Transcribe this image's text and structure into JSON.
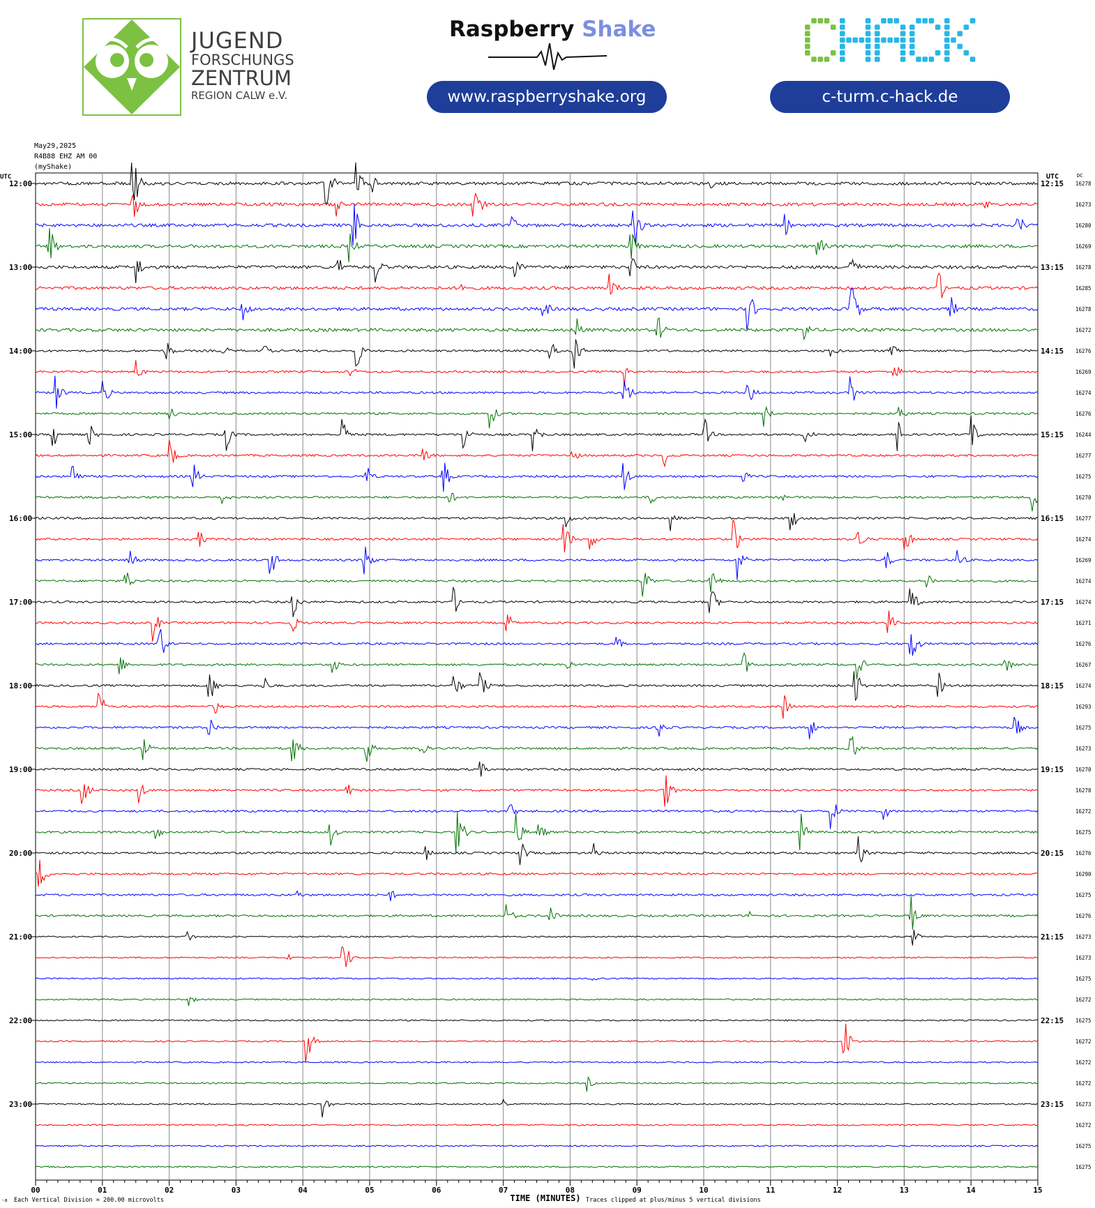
{
  "header": {
    "jfz_lines": [
      "JUGEND",
      "FORSCHUNGS",
      "ZENTRUM",
      "REGION CALW e.V."
    ],
    "rs_name_part1": "Raspberry",
    "rs_name_part2": "Shake",
    "rs_url": "www.raspberryshake.org",
    "chack_name": "CHACK",
    "chack_url": "c-turm.c-hack.de"
  },
  "colors": {
    "jfz_green": "#7cc142",
    "pill_blue": "#1f3e9a",
    "rs_shake_blue": "#7b8fe0",
    "chack_green": "#7cc142",
    "chack_cyan": "#28b7e6",
    "trace_colors": [
      "#000000",
      "#ff0000",
      "#0000ff",
      "#007000"
    ]
  },
  "chart_data": {
    "type": "helicorder",
    "date": "May29,2025",
    "station": "R4B88 EHZ AM 00",
    "network_label": "(myShake)",
    "left_axis_title": "UTC",
    "right_axis_title": "UTC",
    "dc_title": "DC",
    "xlabel": "TIME (MINUTES)",
    "xlim": [
      0,
      15
    ],
    "x_ticks": [
      "00",
      "01",
      "02",
      "03",
      "04",
      "05",
      "06",
      "07",
      "08",
      "09",
      "10",
      "11",
      "12",
      "13",
      "14",
      "15"
    ],
    "scale_note": "Each Vertical Division =  200.00 microvolts",
    "clip_note": "Traces clipped at plus/minus 5 vertical divisions",
    "corner_mark": "-a",
    "left_hour_labels": [
      "12:00",
      "13:00",
      "14:00",
      "15:00",
      "16:00",
      "17:00",
      "18:00",
      "19:00",
      "20:00",
      "21:00",
      "22:00",
      "23:00"
    ],
    "right_hour_labels": [
      "12:15",
      "13:15",
      "14:15",
      "15:15",
      "16:15",
      "17:15",
      "18:15",
      "19:15",
      "20:15",
      "21:15",
      "22:15",
      "23:15"
    ],
    "traces_per_hour": 4,
    "minutes_per_trace": 15,
    "dc_values": [
      "16278",
      "16273",
      "16280",
      "16269",
      "16278",
      "16285",
      "16278",
      "16272",
      "16276",
      "16269",
      "16274",
      "16276",
      "16244",
      "16277",
      "16275",
      "16270",
      "16277",
      "16274",
      "16269",
      "16274",
      "16274",
      "16271",
      "16276",
      "16267",
      "16274",
      "16293",
      "16275",
      "16273",
      "16270",
      "16278",
      "16272",
      "16275",
      "16276",
      "16290",
      "16275",
      "16276",
      "16273",
      "16273",
      "16275",
      "16272",
      "16275",
      "16272",
      "16272",
      "16272",
      "16273",
      "16272",
      "16275",
      "16275"
    ],
    "events": [
      {
        "row": 0,
        "minute": 1.45,
        "amp": 55
      },
      {
        "row": 0,
        "minute": 4.35,
        "amp": 50
      },
      {
        "row": 0,
        "minute": 4.8,
        "amp": 35
      },
      {
        "row": 0,
        "minute": 5.0,
        "amp": 25
      },
      {
        "row": 0,
        "minute": 10.1,
        "amp": 10
      },
      {
        "row": 1,
        "minute": 1.45,
        "amp": 30
      },
      {
        "row": 1,
        "minute": 4.5,
        "amp": 18
      },
      {
        "row": 1,
        "minute": 6.55,
        "amp": 60
      },
      {
        "row": 1,
        "minute": 14.2,
        "amp": 15
      },
      {
        "row": 2,
        "minute": 4.75,
        "amp": 45
      },
      {
        "row": 2,
        "minute": 7.1,
        "amp": 25
      },
      {
        "row": 2,
        "minute": 8.95,
        "amp": 45
      },
      {
        "row": 2,
        "minute": 11.2,
        "amp": 20
      },
      {
        "row": 2,
        "minute": 14.7,
        "amp": 25
      },
      {
        "row": 3,
        "minute": 0.2,
        "amp": 40
      },
      {
        "row": 3,
        "minute": 4.7,
        "amp": 25
      },
      {
        "row": 3,
        "minute": 8.9,
        "amp": 30
      },
      {
        "row": 3,
        "minute": 11.7,
        "amp": 25
      },
      {
        "row": 4,
        "minute": 1.5,
        "amp": 28
      },
      {
        "row": 4,
        "minute": 4.5,
        "amp": 30
      },
      {
        "row": 4,
        "minute": 5.1,
        "amp": 25
      },
      {
        "row": 4,
        "minute": 7.15,
        "amp": 30
      },
      {
        "row": 4,
        "minute": 8.9,
        "amp": 25
      },
      {
        "row": 4,
        "minute": 12.2,
        "amp": 30
      },
      {
        "row": 5,
        "minute": 6.35,
        "amp": 15
      },
      {
        "row": 5,
        "minute": 8.6,
        "amp": 25
      },
      {
        "row": 5,
        "minute": 13.5,
        "amp": 35
      },
      {
        "row": 6,
        "minute": 3.1,
        "amp": 22
      },
      {
        "row": 6,
        "minute": 7.6,
        "amp": 20
      },
      {
        "row": 6,
        "minute": 10.65,
        "amp": 45
      },
      {
        "row": 6,
        "minute": 12.2,
        "amp": 60
      },
      {
        "row": 6,
        "minute": 13.7,
        "amp": 20
      },
      {
        "row": 7,
        "minute": 8.1,
        "amp": 20
      },
      {
        "row": 7,
        "minute": 9.3,
        "amp": 30
      },
      {
        "row": 7,
        "minute": 11.5,
        "amp": 20
      },
      {
        "row": 8,
        "minute": 1.95,
        "amp": 20
      },
      {
        "row": 8,
        "minute": 2.8,
        "amp": 12
      },
      {
        "row": 8,
        "minute": 3.4,
        "amp": 15
      },
      {
        "row": 8,
        "minute": 4.8,
        "amp": 30
      },
      {
        "row": 8,
        "minute": 7.7,
        "amp": 22
      },
      {
        "row": 8,
        "minute": 8.05,
        "amp": 35
      },
      {
        "row": 8,
        "minute": 11.9,
        "amp": 15
      },
      {
        "row": 8,
        "minute": 12.8,
        "amp": 20
      },
      {
        "row": 9,
        "minute": 1.5,
        "amp": 20
      },
      {
        "row": 9,
        "minute": 4.7,
        "amp": 15
      },
      {
        "row": 9,
        "minute": 8.8,
        "amp": 25
      },
      {
        "row": 9,
        "minute": 12.85,
        "amp": 18
      },
      {
        "row": 10,
        "minute": 0.3,
        "amp": 30
      },
      {
        "row": 10,
        "minute": 1.0,
        "amp": 25
      },
      {
        "row": 10,
        "minute": 8.8,
        "amp": 35
      },
      {
        "row": 10,
        "minute": 10.65,
        "amp": 30
      },
      {
        "row": 10,
        "minute": 12.2,
        "amp": 30
      },
      {
        "row": 11,
        "minute": 2.0,
        "amp": 15
      },
      {
        "row": 11,
        "minute": 6.8,
        "amp": 25
      },
      {
        "row": 11,
        "minute": 10.9,
        "amp": 20
      },
      {
        "row": 11,
        "minute": 12.9,
        "amp": 20
      },
      {
        "row": 12,
        "minute": 0.25,
        "amp": 25
      },
      {
        "row": 12,
        "minute": 0.8,
        "amp": 20
      },
      {
        "row": 12,
        "minute": 2.85,
        "amp": 25
      },
      {
        "row": 12,
        "minute": 4.6,
        "amp": 25
      },
      {
        "row": 12,
        "minute": 6.4,
        "amp": 30
      },
      {
        "row": 12,
        "minute": 7.45,
        "amp": 25
      },
      {
        "row": 12,
        "minute": 10.0,
        "amp": 30
      },
      {
        "row": 12,
        "minute": 11.5,
        "amp": 25
      },
      {
        "row": 12,
        "minute": 12.9,
        "amp": 25
      },
      {
        "row": 12,
        "minute": 14.0,
        "amp": 30
      },
      {
        "row": 13,
        "minute": 2.0,
        "amp": 30
      },
      {
        "row": 13,
        "minute": 5.8,
        "amp": 20
      },
      {
        "row": 13,
        "minute": 8.0,
        "amp": 20
      },
      {
        "row": 13,
        "minute": 9.4,
        "amp": 20
      },
      {
        "row": 14,
        "minute": 0.55,
        "amp": 25
      },
      {
        "row": 14,
        "minute": 2.35,
        "amp": 25
      },
      {
        "row": 14,
        "minute": 4.95,
        "amp": 20
      },
      {
        "row": 14,
        "minute": 6.1,
        "amp": 30
      },
      {
        "row": 14,
        "minute": 8.8,
        "amp": 25
      },
      {
        "row": 14,
        "minute": 10.6,
        "amp": 10
      },
      {
        "row": 15,
        "minute": 2.8,
        "amp": 15
      },
      {
        "row": 15,
        "minute": 6.2,
        "amp": 12
      },
      {
        "row": 15,
        "minute": 9.2,
        "amp": 15
      },
      {
        "row": 15,
        "minute": 11.1,
        "amp": 15
      },
      {
        "row": 15,
        "minute": 14.9,
        "amp": 30
      },
      {
        "row": 16,
        "minute": 7.95,
        "amp": 15
      },
      {
        "row": 16,
        "minute": 9.5,
        "amp": 20
      },
      {
        "row": 16,
        "minute": 11.3,
        "amp": 25
      },
      {
        "row": 17,
        "minute": 2.45,
        "amp": 15
      },
      {
        "row": 17,
        "minute": 7.9,
        "amp": 35
      },
      {
        "row": 17,
        "minute": 8.3,
        "amp": 20
      },
      {
        "row": 17,
        "minute": 10.45,
        "amp": 30
      },
      {
        "row": 17,
        "minute": 12.3,
        "amp": 25
      },
      {
        "row": 17,
        "minute": 13.0,
        "amp": 30
      },
      {
        "row": 18,
        "minute": 1.4,
        "amp": 25
      },
      {
        "row": 18,
        "minute": 3.5,
        "amp": 35
      },
      {
        "row": 18,
        "minute": 4.9,
        "amp": 45
      },
      {
        "row": 18,
        "minute": 10.5,
        "amp": 35
      },
      {
        "row": 18,
        "minute": 12.7,
        "amp": 25
      },
      {
        "row": 18,
        "minute": 13.8,
        "amp": 20
      },
      {
        "row": 19,
        "minute": 1.35,
        "amp": 20
      },
      {
        "row": 19,
        "minute": 9.1,
        "amp": 25
      },
      {
        "row": 19,
        "minute": 10.1,
        "amp": 30
      },
      {
        "row": 19,
        "minute": 13.35,
        "amp": 15
      },
      {
        "row": 20,
        "minute": 3.85,
        "amp": 25
      },
      {
        "row": 20,
        "minute": 6.25,
        "amp": 25
      },
      {
        "row": 20,
        "minute": 10.1,
        "amp": 30
      },
      {
        "row": 20,
        "minute": 13.1,
        "amp": 25
      },
      {
        "row": 21,
        "minute": 1.75,
        "amp": 30
      },
      {
        "row": 21,
        "minute": 3.8,
        "amp": 30
      },
      {
        "row": 21,
        "minute": 7.05,
        "amp": 20
      },
      {
        "row": 21,
        "minute": 12.75,
        "amp": 25
      },
      {
        "row": 22,
        "minute": 1.85,
        "amp": 35
      },
      {
        "row": 22,
        "minute": 8.7,
        "amp": 12
      },
      {
        "row": 22,
        "minute": 13.1,
        "amp": 35
      },
      {
        "row": 23,
        "minute": 1.25,
        "amp": 20
      },
      {
        "row": 23,
        "minute": 4.45,
        "amp": 15
      },
      {
        "row": 23,
        "minute": 7.95,
        "amp": 12
      },
      {
        "row": 23,
        "minute": 10.6,
        "amp": 20
      },
      {
        "row": 23,
        "minute": 12.3,
        "amp": 25
      },
      {
        "row": 23,
        "minute": 14.5,
        "amp": 20
      },
      {
        "row": 24,
        "minute": 2.6,
        "amp": 30
      },
      {
        "row": 24,
        "minute": 3.4,
        "amp": 20
      },
      {
        "row": 24,
        "minute": 6.25,
        "amp": 30
      },
      {
        "row": 24,
        "minute": 6.65,
        "amp": 25
      },
      {
        "row": 24,
        "minute": 12.25,
        "amp": 35
      },
      {
        "row": 24,
        "minute": 13.5,
        "amp": 25
      },
      {
        "row": 25,
        "minute": 0.95,
        "amp": 25
      },
      {
        "row": 25,
        "minute": 2.65,
        "amp": 20
      },
      {
        "row": 25,
        "minute": 11.2,
        "amp": 20
      },
      {
        "row": 26,
        "minute": 2.6,
        "amp": 20
      },
      {
        "row": 26,
        "minute": 9.3,
        "amp": 25
      },
      {
        "row": 26,
        "minute": 11.6,
        "amp": 18
      },
      {
        "row": 26,
        "minute": 14.65,
        "amp": 25
      },
      {
        "row": 27,
        "minute": 1.6,
        "amp": 25
      },
      {
        "row": 27,
        "minute": 3.85,
        "amp": 30
      },
      {
        "row": 27,
        "minute": 4.95,
        "amp": 25
      },
      {
        "row": 27,
        "minute": 5.75,
        "amp": 20
      },
      {
        "row": 27,
        "minute": 12.2,
        "amp": 30
      },
      {
        "row": 28,
        "minute": 6.65,
        "amp": 15
      },
      {
        "row": 29,
        "minute": 0.7,
        "amp": 30
      },
      {
        "row": 29,
        "minute": 1.55,
        "amp": 20
      },
      {
        "row": 29,
        "minute": 4.65,
        "amp": 15
      },
      {
        "row": 29,
        "minute": 9.4,
        "amp": 45
      },
      {
        "row": 30,
        "minute": 7.1,
        "amp": 15
      },
      {
        "row": 30,
        "minute": 11.9,
        "amp": 30
      },
      {
        "row": 30,
        "minute": 12.7,
        "amp": 15
      },
      {
        "row": 31,
        "minute": 1.8,
        "amp": 25
      },
      {
        "row": 31,
        "minute": 4.4,
        "amp": 25
      },
      {
        "row": 31,
        "minute": 6.3,
        "amp": 50
      },
      {
        "row": 31,
        "minute": 7.2,
        "amp": 30
      },
      {
        "row": 31,
        "minute": 7.5,
        "amp": 30
      },
      {
        "row": 31,
        "minute": 11.45,
        "amp": 30
      },
      {
        "row": 32,
        "minute": 5.85,
        "amp": 12
      },
      {
        "row": 32,
        "minute": 7.25,
        "amp": 25
      },
      {
        "row": 32,
        "minute": 8.35,
        "amp": 15
      },
      {
        "row": 32,
        "minute": 12.3,
        "amp": 30
      },
      {
        "row": 33,
        "minute": 0.05,
        "amp": 30
      },
      {
        "row": 34,
        "minute": 3.9,
        "amp": 10
      },
      {
        "row": 34,
        "minute": 5.3,
        "amp": 12
      },
      {
        "row": 35,
        "minute": 7.05,
        "amp": 20
      },
      {
        "row": 35,
        "minute": 7.7,
        "amp": 18
      },
      {
        "row": 35,
        "minute": 10.7,
        "amp": 8
      },
      {
        "row": 35,
        "minute": 13.1,
        "amp": 30
      },
      {
        "row": 36,
        "minute": 2.25,
        "amp": 15
      },
      {
        "row": 36,
        "minute": 13.1,
        "amp": 20
      },
      {
        "row": 37,
        "minute": 3.75,
        "amp": 8
      },
      {
        "row": 37,
        "minute": 4.6,
        "amp": 35
      },
      {
        "row": 38,
        "minute": 8.35,
        "amp": 10
      },
      {
        "row": 39,
        "minute": 2.3,
        "amp": 10
      },
      {
        "row": 41,
        "minute": 4.05,
        "amp": 35
      },
      {
        "row": 41,
        "minute": 12.1,
        "amp": 40
      },
      {
        "row": 43,
        "minute": 8.25,
        "amp": 12
      },
      {
        "row": 44,
        "minute": 4.3,
        "amp": 20
      },
      {
        "row": 44,
        "minute": 7.0,
        "amp": 10
      }
    ]
  }
}
